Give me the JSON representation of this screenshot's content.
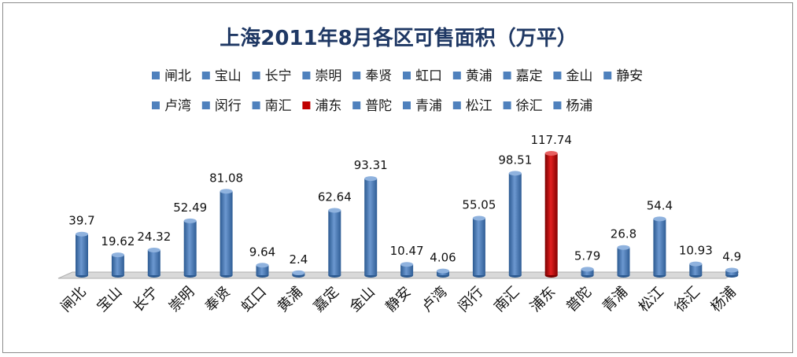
{
  "chart_data": {
    "type": "bar",
    "title": "上海2011年8月各区可售面积（万平）",
    "categories": [
      "闸北",
      "宝山",
      "长宁",
      "崇明",
      "奉贤",
      "虹口",
      "黄浦",
      "嘉定",
      "金山",
      "静安",
      "卢湾",
      "闵行",
      "南汇",
      "浦东",
      "普陀",
      "青浦",
      "松江",
      "徐汇",
      "杨浦"
    ],
    "values": [
      39.7,
      19.62,
      24.32,
      52.49,
      81.08,
      9.64,
      2.4,
      62.64,
      93.31,
      10.47,
      4.06,
      55.05,
      98.51,
      117.74,
      5.79,
      26.8,
      54.4,
      10.93,
      4.9
    ],
    "value_labels": [
      "39.7",
      "19.62",
      "24.32",
      "52.49",
      "81.08",
      "9.64",
      "2.4",
      "62.64",
      "93.31",
      "10.47",
      "4.06",
      "55.05",
      "98.51",
      "117.74",
      "5.79",
      "26.8",
      "54.4",
      "10.93",
      "4.9"
    ],
    "highlight_index": 13,
    "legend_position": "top",
    "grid": false,
    "ylim": [
      0,
      120
    ],
    "colors": {
      "bar": "#4f81bd",
      "bar_dark": "#2c5a91",
      "bar_light": "#8fb2de",
      "highlight": "#c00000",
      "highlight_dark": "#7a0000",
      "highlight_light": "#e86060",
      "title": "#1f3864"
    }
  }
}
